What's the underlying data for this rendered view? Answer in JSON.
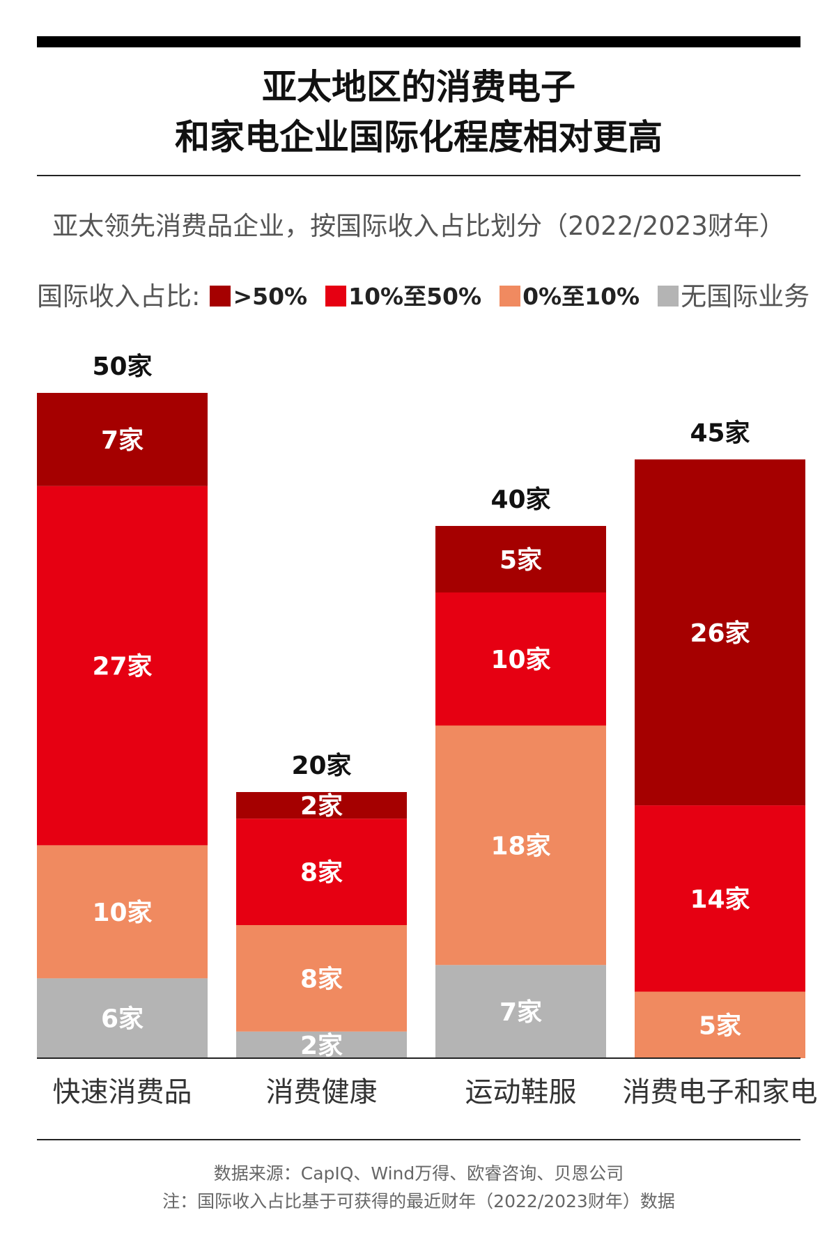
{
  "title_line1": "亚太地区的消费电子",
  "title_line2": "和家电企业国际化程度相对更高",
  "subtitle": "亚太领先消费品企业，按国际收入占比划分（2022/2023财年）",
  "legend": {
    "label": "国际收入占比:",
    "items": [
      {
        "name": ">50%",
        "color": "#a50000"
      },
      {
        "name": "10%至50%",
        "color": "#e60012"
      },
      {
        "name": "0%至10%",
        "color": "#f08a60"
      },
      {
        "name": "无国际业务",
        "color": "#b4b4b4"
      }
    ]
  },
  "footer": {
    "source": "数据来源：CapIQ、Wind万得、欧睿咨询、贝恩公司",
    "note": "注：国际收入占比基于可获得的最近财年（2022/2023财年）数据"
  },
  "chart_data": {
    "type": "bar",
    "stacked": true,
    "unit_suffix": "家",
    "categories": [
      "快速消费品",
      "消费健康",
      "运动鞋服",
      "消费电子和家电"
    ],
    "totals": [
      50,
      20,
      40,
      45
    ],
    "series": [
      {
        "name": "无国际业务",
        "color": "#b4b4b4",
        "values": [
          6,
          2,
          7,
          0
        ]
      },
      {
        "name": "0%至10%",
        "color": "#f08a60",
        "values": [
          10,
          8,
          18,
          5
        ]
      },
      {
        "name": "10%至50%",
        "color": "#e60012",
        "values": [
          27,
          8,
          10,
          14
        ]
      },
      {
        "name": ">50%",
        "color": "#a50000",
        "values": [
          7,
          2,
          5,
          26
        ]
      }
    ],
    "ylim": [
      0,
      50
    ],
    "grid": false,
    "legend_position": "top-left"
  }
}
